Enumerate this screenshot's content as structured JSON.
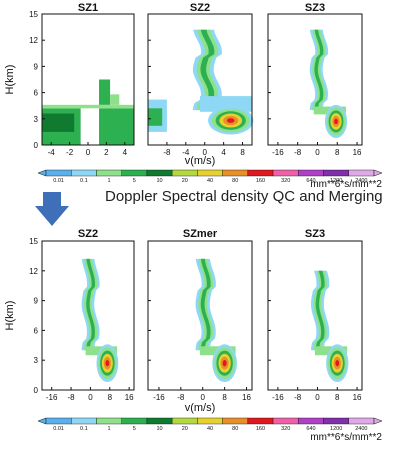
{
  "annotation": "Doppler Spectral density QC and Merging",
  "chart_data": [
    {
      "type": "heatmap",
      "group": "before",
      "panels": [
        {
          "title": "SZ1",
          "xlim": [
            -5,
            5
          ],
          "xticks": [
            -4,
            -2,
            0,
            2,
            4
          ]
        },
        {
          "title": "SZ2",
          "xlim": [
            -12,
            10
          ],
          "xticks": [
            -8,
            -4,
            0,
            4,
            8
          ]
        },
        {
          "title": "SZ3",
          "xlim": [
            -20,
            18
          ],
          "xticks": [
            -16,
            -8,
            0,
            8,
            16
          ]
        }
      ],
      "ylabel": "H(km)",
      "xlabel": "v(m/s)",
      "ylim": [
        0,
        15
      ],
      "yticks": [
        0,
        3,
        6,
        9,
        12,
        15
      ],
      "colorbar": {
        "ticks": [
          "0.01",
          "0.1",
          "1",
          "5",
          "10",
          "20",
          "40",
          "80",
          "160",
          "320",
          "640",
          "1200",
          "2400"
        ],
        "colors": [
          "#5ab0ec",
          "#8ed8f6",
          "#8ee08a",
          "#2cb050",
          "#0f7a30",
          "#b4d840",
          "#e8d030",
          "#e89028",
          "#e01820",
          "#f060a8",
          "#b040c8",
          "#8030a8",
          "#e0a8e8"
        ],
        "unit": "mm**6*s/mm**2"
      }
    },
    {
      "type": "heatmap",
      "group": "after",
      "panels": [
        {
          "title": "SZ2",
          "xlim": [
            -20,
            18
          ],
          "xticks": [
            -16,
            -8,
            0,
            8,
            16
          ]
        },
        {
          "title": "SZmer",
          "xlim": [
            -20,
            18
          ],
          "xticks": [
            -16,
            -8,
            0,
            8,
            16
          ]
        },
        {
          "title": "SZ3",
          "xlim": [
            -20,
            18
          ],
          "xticks": [
            -16,
            -8,
            0,
            8,
            16
          ]
        }
      ],
      "ylabel": "H(km)",
      "xlabel": "v(m/s)",
      "ylim": [
        0,
        15
      ],
      "yticks": [
        0,
        3,
        6,
        9,
        12,
        15
      ],
      "colorbar": {
        "ticks": [
          "0.01",
          "0.1",
          "1",
          "5",
          "10",
          "20",
          "40",
          "80",
          "160",
          "320",
          "640",
          "1200",
          "2400"
        ],
        "colors": [
          "#5ab0ec",
          "#8ed8f6",
          "#8ee08a",
          "#2cb050",
          "#0f7a30",
          "#b4d840",
          "#e8d030",
          "#e89028",
          "#e01820",
          "#f060a8",
          "#b040c8",
          "#8030a8",
          "#e0a8e8"
        ],
        "unit": "mm**6*s/mm**2"
      }
    }
  ]
}
